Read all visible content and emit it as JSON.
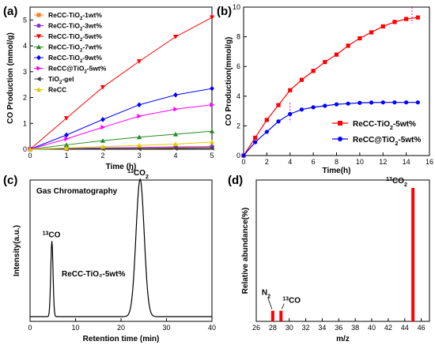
{
  "chart_data": [
    {
      "id": "a",
      "panel_label": "(a)",
      "type": "line",
      "xlabel": "Time (h)",
      "ylabel": "CO Production (mmol/g)",
      "xlim": [
        0,
        5
      ],
      "ylim": [
        0,
        5.5
      ],
      "xticks": [
        0,
        1,
        2,
        3,
        4,
        5
      ],
      "yticks": [
        0,
        1,
        2,
        3,
        4,
        5
      ],
      "legend_position": "top-left",
      "x": [
        0,
        1,
        2,
        3,
        4,
        5
      ],
      "series": [
        {
          "name": "ReCC-TiO",
          "sub": "2",
          "suffix": "-1wt%",
          "color": "#ff7f27",
          "marker": "square",
          "values": [
            0,
            0.02,
            0.04,
            0.05,
            0.06,
            0.08
          ]
        },
        {
          "name": "ReCC-TiO",
          "sub": "2",
          "suffix": "-3wt%",
          "color": "#8b2be2",
          "marker": "circle",
          "values": [
            0,
            0.03,
            0.05,
            0.07,
            0.09,
            0.1
          ]
        },
        {
          "name": "ReCC-TiO",
          "sub": "2",
          "suffix": "-5wt%",
          "color": "#ff0000",
          "marker": "tri-down",
          "values": [
            0,
            1.2,
            2.4,
            3.4,
            4.35,
            5.1
          ]
        },
        {
          "name": "ReCC-TiO",
          "sub": "2",
          "suffix": "-7wt%",
          "color": "#228b22",
          "marker": "tri-up",
          "values": [
            0,
            0.17,
            0.33,
            0.47,
            0.58,
            0.7
          ]
        },
        {
          "name": "ReCC-TiO",
          "sub": "2",
          "suffix": "-9wt%",
          "color": "#0000ff",
          "marker": "diamond",
          "values": [
            0,
            0.55,
            1.15,
            1.72,
            2.1,
            2.35
          ]
        },
        {
          "name": "ReCC@TiO",
          "sub": "2",
          "suffix": "-5wt%",
          "color": "#ff00ff",
          "marker": "tri-right",
          "values": [
            0,
            0.4,
            0.85,
            1.28,
            1.55,
            1.72
          ]
        },
        {
          "name": "TiO",
          "sub": "2",
          "suffix": "-gel",
          "color": "#404040",
          "marker": "tri-left",
          "values": [
            0,
            0.01,
            0.02,
            0.02,
            0.03,
            0.04
          ]
        },
        {
          "name": "ReCC",
          "sub": "",
          "suffix": "",
          "color": "#e6c800",
          "marker": "tri-up",
          "values": [
            0,
            0.05,
            0.1,
            0.15,
            0.2,
            0.28
          ]
        }
      ]
    },
    {
      "id": "b",
      "panel_label": "(b)",
      "type": "line",
      "xlabel": "Time(h)",
      "ylabel": "CO Production(mmol/g)",
      "xlim": [
        0,
        16
      ],
      "ylim": [
        0,
        10
      ],
      "xticks": [
        0,
        2,
        4,
        6,
        8,
        10,
        12,
        14,
        16
      ],
      "yticks": [
        0,
        2,
        4,
        6,
        8,
        10
      ],
      "legend_position": "bottom-right",
      "series": [
        {
          "name": "ReCC-TiO",
          "sub": "2",
          "suffix": "-5wt%",
          "color": "#ff0000",
          "marker": "square",
          "x": [
            0,
            1,
            2,
            3,
            4,
            5,
            6,
            7,
            8,
            9,
            10,
            11,
            12,
            13,
            14,
            15
          ],
          "values": [
            0,
            1.2,
            2.4,
            3.4,
            4.4,
            5.1,
            5.7,
            6.3,
            6.8,
            7.4,
            7.9,
            8.3,
            8.7,
            9.0,
            9.2,
            9.3
          ]
        },
        {
          "name": "ReCC@TiO",
          "sub": "2",
          "suffix": "-5wt%",
          "color": "#0000ff",
          "marker": "circle",
          "x": [
            0,
            1,
            2,
            3,
            4,
            5,
            6,
            7,
            8,
            9,
            10,
            11,
            12,
            13,
            14,
            15
          ],
          "values": [
            0,
            0.9,
            1.6,
            2.3,
            2.8,
            3.1,
            3.25,
            3.35,
            3.45,
            3.5,
            3.55,
            3.57,
            3.58,
            3.58,
            3.58,
            3.58
          ]
        }
      ],
      "markers_vertical": [
        4,
        14.5
      ]
    },
    {
      "id": "c",
      "panel_label": "(c)",
      "type": "line",
      "title": "Gas Chromatography",
      "xlabel": "Retention time (min)",
      "ylabel": "Intensity(a.u.)",
      "xlim": [
        0,
        40
      ],
      "xticks": [
        0,
        10,
        20,
        30,
        40
      ],
      "annotation": "ReCC-TiO₂-5wt%",
      "peaks": [
        {
          "label_sup": "13",
          "label": "CO",
          "x": 4.8,
          "height": 0.55
        },
        {
          "label_sup": "13",
          "label": "CO",
          "label_sub": "2",
          "x": 24.2,
          "height": 1.0
        }
      ]
    },
    {
      "id": "d",
      "panel_label": "(d)",
      "type": "bar",
      "xlabel": "m/z",
      "ylabel": "Relative abundance(%)",
      "xlim": [
        26,
        47
      ],
      "xticks": [
        26,
        28,
        30,
        32,
        34,
        36,
        38,
        40,
        42,
        44,
        46
      ],
      "bars": [
        {
          "x": 28,
          "value": 0.08,
          "label": "N",
          "label_sub": "2"
        },
        {
          "x": 29,
          "value": 0.08,
          "label_sup": "13",
          "label": "CO"
        },
        {
          "x": 45,
          "value": 1.0,
          "label_sup": "13",
          "label": "CO",
          "label_sub": "2"
        }
      ]
    }
  ]
}
